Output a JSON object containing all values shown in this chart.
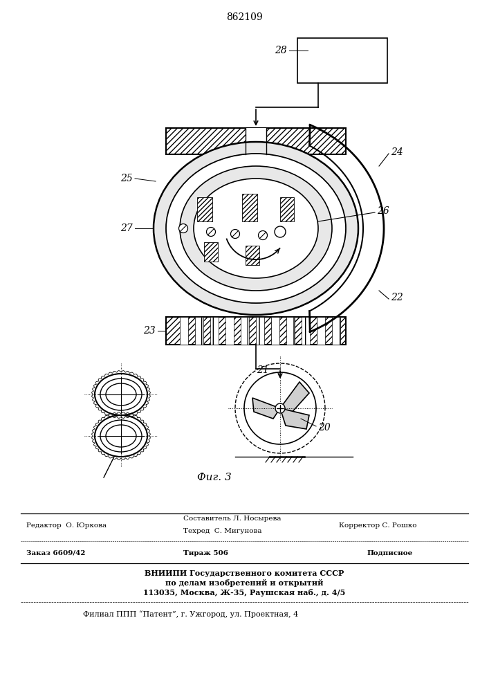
{
  "title": "862109",
  "fig_label": "Фиг. 3",
  "line1_editor": "Редактор  О. Юркова",
  "line1_composer": "Составитель Л. Носырева",
  "line1_corrector": "Корректор С. Рошко",
  "line2_techred": "Техред  С. Мигунова",
  "line3_order": "Заказ 6609/42",
  "line3_tirazh": "Тираж 506",
  "line3_podpisnoe": "Подписное",
  "line4": "ВНИИПИ Государственного комитета СССР",
  "line5": "по делам изобретений и открытий",
  "line6": "113035, Москва, Ж-35, Раушская наб., д. 4/5",
  "line7": "Филиал ППП “Патент”, г. Ужгород, ул. Проектная, 4",
  "bg_color": "#ffffff",
  "line_color": "#000000"
}
